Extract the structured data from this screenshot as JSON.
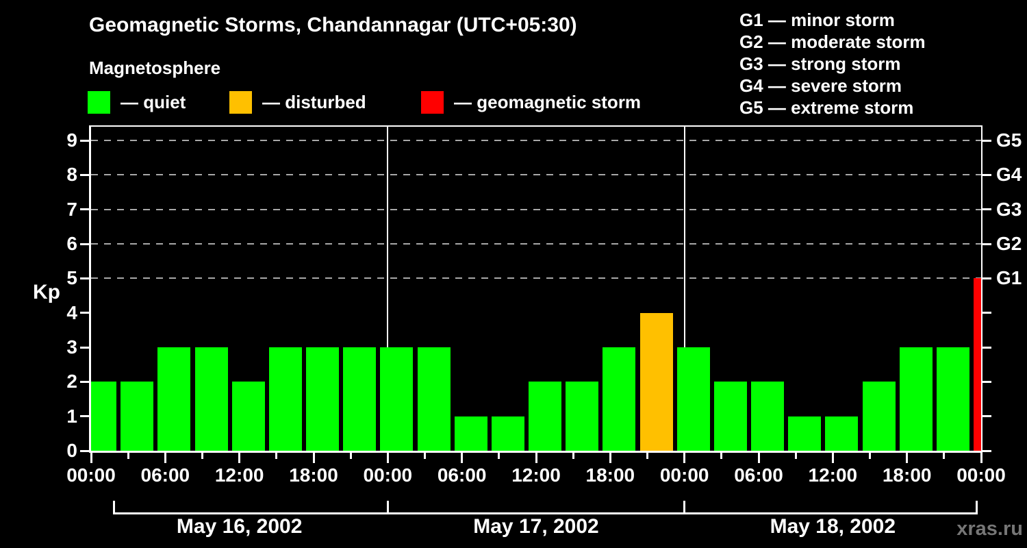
{
  "header": {
    "title": "Geomagnetic Storms, Chandannagar (UTC+05:30)",
    "subtitle": "Magnetosphere"
  },
  "legend": {
    "items": [
      {
        "name": "quiet",
        "label": "— quiet",
        "color": "#00ff00"
      },
      {
        "name": "disturbed",
        "label": "— disturbed",
        "color": "#ffc000"
      },
      {
        "name": "storm",
        "label": "— geomagnetic storm",
        "color": "#ff0000"
      }
    ]
  },
  "storm_scale": {
    "items": [
      {
        "label": "G1 — minor storm"
      },
      {
        "label": "G2 — moderate storm"
      },
      {
        "label": "G3 — strong storm"
      },
      {
        "label": "G4 — severe storm"
      },
      {
        "label": "G5 — extreme storm"
      }
    ]
  },
  "watermark": "xras.ru",
  "chart_data": {
    "type": "bar",
    "title": "Geomagnetic Storms, Chandannagar (UTC+05:30)",
    "ylabel": "Kp",
    "ylim": [
      0,
      9.4
    ],
    "y_ticks": [
      0,
      1,
      2,
      3,
      4,
      5,
      6,
      7,
      8,
      9
    ],
    "grid_dashed_at": [
      5,
      6,
      7,
      8,
      9
    ],
    "right_axis": [
      {
        "kp": 5,
        "label": "G1"
      },
      {
        "kp": 6,
        "label": "G2"
      },
      {
        "kp": 7,
        "label": "G3"
      },
      {
        "kp": 8,
        "label": "G4"
      },
      {
        "kp": 9,
        "label": "G5"
      }
    ],
    "hours_total": 72,
    "bar_interval_hours": 3,
    "x_tick_labels": [
      "00:00",
      "06:00",
      "12:00",
      "18:00",
      "00:00",
      "06:00",
      "12:00",
      "18:00",
      "00:00",
      "06:00",
      "12:00",
      "18:00",
      "00:00"
    ],
    "days": [
      {
        "date": "May 16, 2002",
        "kp": [
          2,
          2,
          3,
          3,
          2,
          3,
          3,
          3
        ]
      },
      {
        "date": "May 17, 2002",
        "kp": [
          3,
          3,
          1,
          1,
          2,
          2,
          3,
          4
        ]
      },
      {
        "date": "May 18, 2002",
        "kp": [
          3,
          2,
          2,
          1,
          1,
          2,
          3,
          3
        ]
      }
    ],
    "partial_next_bar_kp": 5,
    "bar_colors": {
      "quiet": "#00ff00",
      "disturbed": "#ffc000",
      "storm": "#ff0000"
    },
    "color_thresholds": {
      "disturbed_at_kp": 4,
      "storm_at_kp": 5
    },
    "legend_position": "top-left",
    "grid": "dashed horizontal at G-storm levels only"
  }
}
